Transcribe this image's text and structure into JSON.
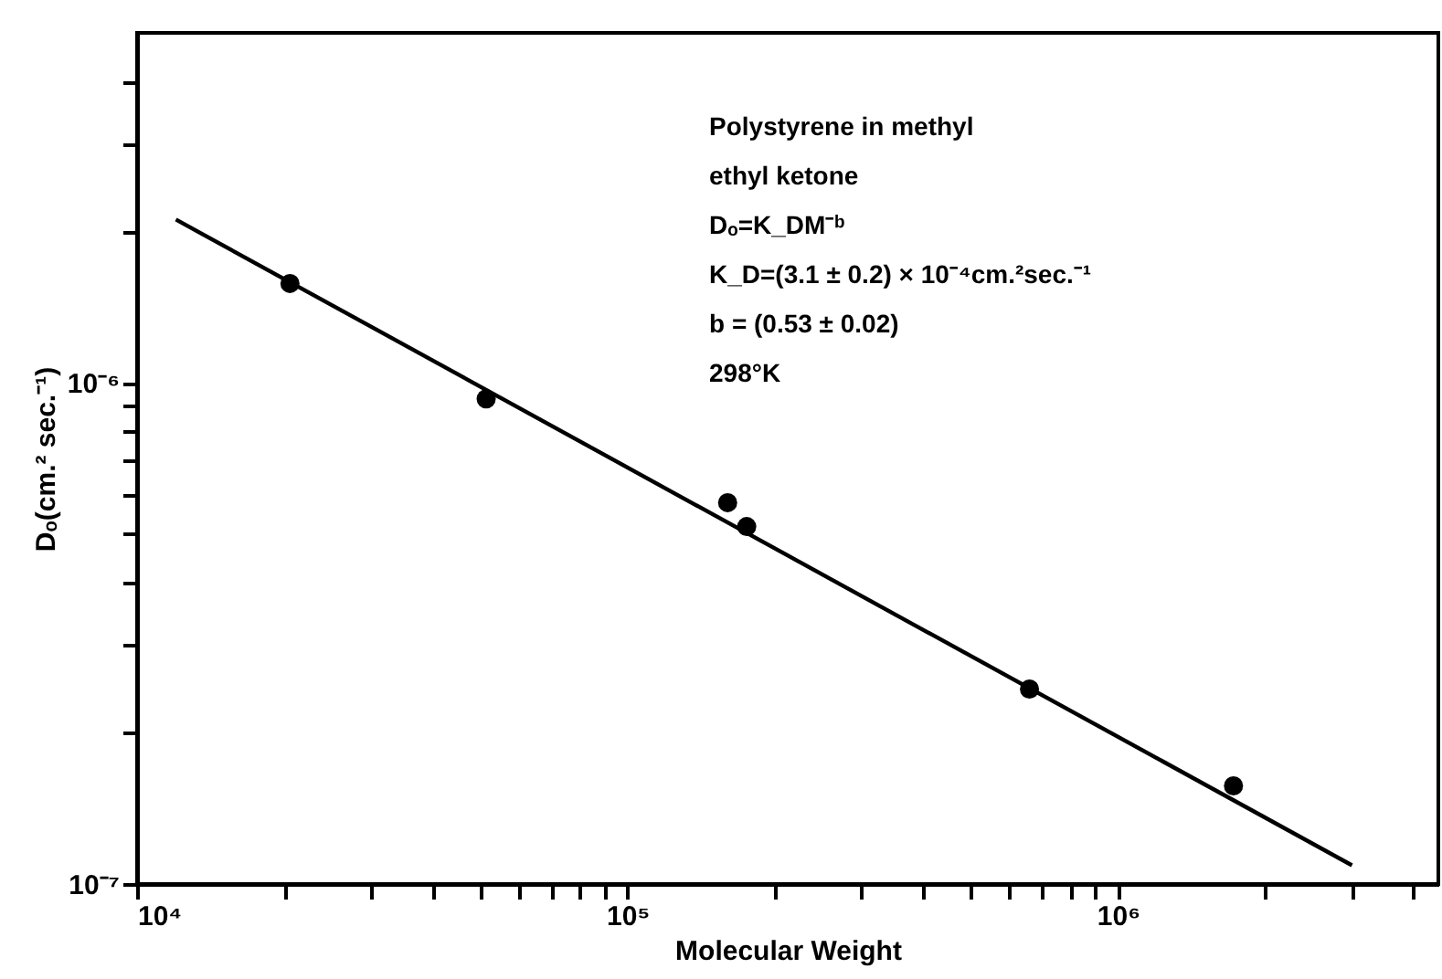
{
  "chart_data": {
    "type": "scatter",
    "xlabel": "Molecular Weight",
    "ylabel": "Dₒ(cm.² sec.⁻¹)",
    "annotations": [
      "Polystyrene in methyl",
      "  ethyl ketone",
      "Dₒ=K_DM⁻ᵇ",
      "K_D=(3.1 ± 0.2) × 10⁻⁴cm.²sec.⁻¹",
      "b = (0.53 ± 0.02)",
      "298°K"
    ],
    "log": "xy",
    "grid": false,
    "marker": "circle",
    "xlim": [
      10000,
      4500000
    ],
    "ylim": [
      1e-07,
      5e-06
    ],
    "xticks": [
      {
        "value": 10000,
        "label": "10⁴"
      },
      {
        "value": 20000,
        "label": null
      },
      {
        "value": 30000,
        "label": null
      },
      {
        "value": 40000,
        "label": null
      },
      {
        "value": 50000,
        "label": null
      },
      {
        "value": 60000,
        "label": null
      },
      {
        "value": 70000,
        "label": null
      },
      {
        "value": 80000,
        "label": null
      },
      {
        "value": 90000,
        "label": null
      },
      {
        "value": 100000,
        "label": "10⁵"
      },
      {
        "value": 200000,
        "label": null
      },
      {
        "value": 300000,
        "label": null
      },
      {
        "value": 400000,
        "label": null
      },
      {
        "value": 500000,
        "label": null
      },
      {
        "value": 600000,
        "label": null
      },
      {
        "value": 700000,
        "label": null
      },
      {
        "value": 800000,
        "label": null
      },
      {
        "value": 900000,
        "label": null
      },
      {
        "value": 1000000,
        "label": "10⁶"
      },
      {
        "value": 2000000,
        "label": null
      },
      {
        "value": 3000000,
        "label": null
      },
      {
        "value": 4000000,
        "label": null
      }
    ],
    "yticks": [
      {
        "value": 1e-07,
        "label": "10⁻⁷"
      },
      {
        "value": 2e-07,
        "label": null
      },
      {
        "value": 3e-07,
        "label": null
      },
      {
        "value": 4e-07,
        "label": null
      },
      {
        "value": 5e-07,
        "label": null
      },
      {
        "value": 6e-07,
        "label": null
      },
      {
        "value": 7e-07,
        "label": null
      },
      {
        "value": 8e-07,
        "label": null
      },
      {
        "value": 9e-07,
        "label": null
      },
      {
        "value": 1e-06,
        "label": "10⁻⁶"
      },
      {
        "value": 2e-06,
        "label": null
      },
      {
        "value": 3e-06,
        "label": null
      },
      {
        "value": 4e-06,
        "label": null
      }
    ],
    "series": [
      {
        "color": "#000000",
        "x": [
          20500,
          51500,
          160000,
          175000,
          660000,
          1720000
        ],
        "values": [
          1.58e-06,
          9.3e-07,
          5.77e-07,
          5.17e-07,
          2.45e-07,
          1.57e-07
        ]
      },
      {
        "type": "line",
        "color": "#000000",
        "marker": "none",
        "line_style": "solid",
        "x": [
          12000,
          3000000
        ],
        "values": [
          2.12e-06,
          1.09e-07
        ]
      }
    ]
  }
}
